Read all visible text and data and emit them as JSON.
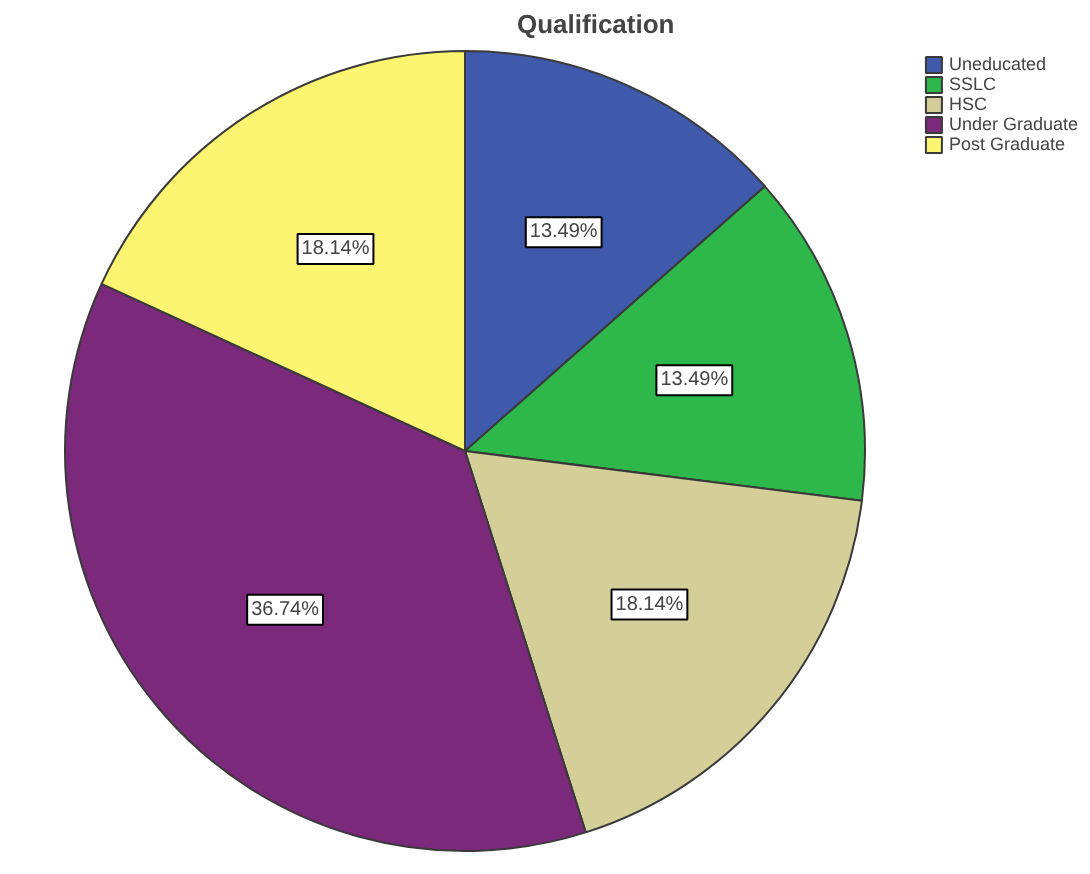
{
  "chart_data": {
    "type": "pie",
    "title": "Qualification",
    "categories": [
      "Uneducated",
      "SSLC",
      "HSC",
      "Under Graduate",
      "Post Graduate"
    ],
    "values": [
      13.49,
      13.49,
      18.14,
      36.74,
      18.14
    ],
    "colors": [
      "#3f59ab",
      "#2eb84b",
      "#d4cf99",
      "#7b297b",
      "#fbf571"
    ],
    "value_labels": [
      "13.49%",
      "13.49%",
      "18.14%",
      "36.74%",
      "18.14%"
    ],
    "legend": "top right"
  }
}
